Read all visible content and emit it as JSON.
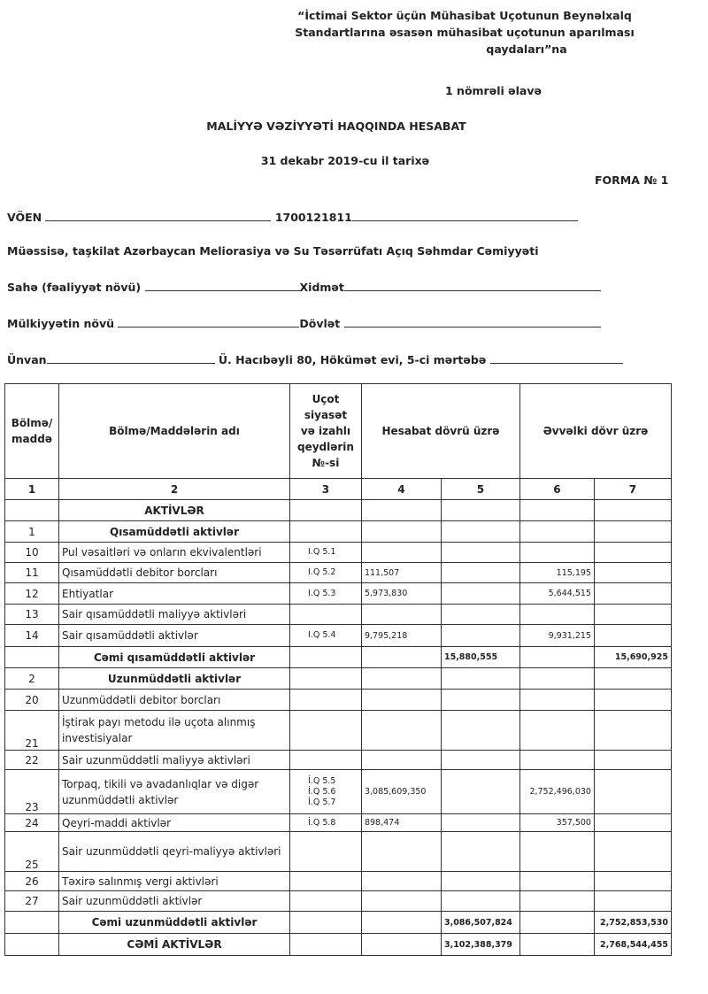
{
  "header": {
    "lines": [
      "“İctimai Sektor üçün Mühasibat Uçotunun Beynəlxalq",
      "Standartlarına əsasən mühasibat uçotunun aparılması",
      "qaydaları”na"
    ],
    "annex": "1 nömrəli əlavə",
    "title": "MALİYYƏ VƏZİYYƏTİ HAQQINDA HESABAT",
    "date": "31 dekabr 2019-cu il tarixə",
    "form": "FORMA № 1"
  },
  "fields": {
    "voen_label": "VÖEN",
    "voen": "1700121811",
    "entity": "Müəssisə, taşkilat Azərbaycan Meliorasiya və Su Təsərrüfatı Açıq Səhmdar Cəmiyyəti",
    "sector_label": "Sahə (fəaliyyət növü)",
    "sector": "Xidmət",
    "ownership_label": "Mülkiyyətin növü",
    "ownership": "Dövlət",
    "address_label": "Ünvan",
    "address": "Ü. Hacıbəyli 80, Hökümət evi, 5-ci mərtəbə"
  },
  "table": {
    "columns": [
      "Bölmə/ maddə",
      "Bölmə/Maddələrin adı",
      "Uçot siyasət və izahlı qeydlərin №-si",
      "Hesabat dövrü üzrə",
      "Əvvəlki dövr üzrə"
    ],
    "numbers": [
      1,
      2,
      3,
      4,
      5,
      6,
      7
    ],
    "rows": [
      {
        "name": "AKTİVLƏR"
      },
      {
        "code": "1",
        "name": "Qısamüddətli aktivlər"
      },
      {
        "code": "10",
        "name": "Pul vəsaitləri və onların ekvivalentləri",
        "notes": [
          "I.Q 5.1"
        ]
      },
      {
        "code": "11",
        "name": "Qısamüddətli debitor borcları",
        "notes": [
          "I.Q 5.2"
        ],
        "current": "111,507",
        "prior": "115,195"
      },
      {
        "code": "12",
        "name": "Ehtiyatlar",
        "notes": [
          "I.Q 5.3"
        ],
        "current": "5,973,830",
        "prior": "5,644,515"
      },
      {
        "code": "13",
        "name": "Sair qısamüddətli maliyyə aktivləri"
      },
      {
        "code": "14",
        "name": "Sair qısamüddətli aktivlər",
        "notes": [
          "I.Q 5.4"
        ],
        "current": "9,795,218",
        "prior": "9,931,215"
      },
      {
        "name": "Cəmi qısamüddətli aktivlər",
        "current_total": "15,880,555",
        "prior_total": "15,690,925"
      },
      {
        "code": "2",
        "name": "Uzunmüddətli aktivlər"
      },
      {
        "code": "20",
        "name": "Uzunmüddətli debitor borcları"
      },
      {
        "code": "21",
        "name": "İştirak payı metodu ilə uçota alınmış investisiyalar"
      },
      {
        "code": "22",
        "name": "Sair uzunmüddətli maliyyə aktivləri"
      },
      {
        "code": "23",
        "name": "Torpaq, tikili və avadanlıqlar və digər uzunmüddətli aktivlər",
        "notes": [
          "İ.Q 5.5",
          "İ.Q 5.6",
          "İ.Q 5.7"
        ],
        "current": "3,085,609,350",
        "prior": "2,752,496,030"
      },
      {
        "code": "24",
        "name": "Qeyri-maddi aktivlər",
        "notes": [
          "İ.Q 5.8"
        ],
        "current": "898,474",
        "prior": "357,500"
      },
      {
        "code": "25",
        "name": "Sair uzunmüddətli qeyri-maliyyə aktivləri"
      },
      {
        "code": "26",
        "name": "Təxirə salınmış vergi aktivləri"
      },
      {
        "code": "27",
        "name": "Sair uzunmüddətli aktivlər"
      },
      {
        "name": "Cəmi uzunmüddətli aktivlər",
        "current_total": "3,086,507,824",
        "prior_total": "2,752,853,530"
      },
      {
        "name": "CƏMİ AKTİVLƏR",
        "current_total": "3,102,388,379",
        "prior_total": "2,768,544,455"
      }
    ]
  }
}
